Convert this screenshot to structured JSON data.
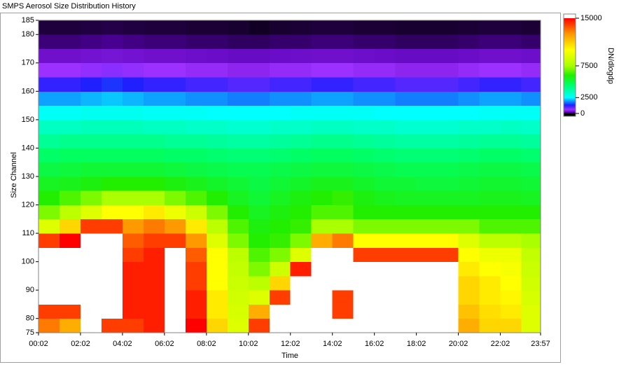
{
  "chart_data": {
    "type": "heatmap",
    "title": "SMPS Aerosol Size Distribution History",
    "x_label": "Time",
    "y_label": "Size Channel",
    "colorbar_label": "DN/dlogdp",
    "xlim": [
      2,
      1437
    ],
    "xticks": [
      {
        "value": 2,
        "label": "00:02"
      },
      {
        "value": 122,
        "label": "02:02"
      },
      {
        "value": 242,
        "label": "04:02"
      },
      {
        "value": 362,
        "label": "06:02"
      },
      {
        "value": 482,
        "label": "08:02"
      },
      {
        "value": 602,
        "label": "10:02"
      },
      {
        "value": 722,
        "label": "12:02"
      },
      {
        "value": 842,
        "label": "14:02"
      },
      {
        "value": 962,
        "label": "16:02"
      },
      {
        "value": 1082,
        "label": "18:02"
      },
      {
        "value": 1202,
        "label": "20:02"
      },
      {
        "value": 1322,
        "label": "22:02"
      },
      {
        "value": 1437,
        "label": "23:57"
      }
    ],
    "ylim": [
      75,
      185
    ],
    "yticks": [
      75,
      80,
      90,
      100,
      110,
      120,
      130,
      140,
      150,
      160,
      170,
      180,
      185
    ],
    "zlim": [
      0,
      15000
    ],
    "zticks": [
      0,
      2500,
      7500,
      15000
    ],
    "colorscale": [
      [
        0,
        "#000000"
      ],
      [
        150,
        "#5a00b4"
      ],
      [
        600,
        "#9b30ff"
      ],
      [
        1300,
        "#2020ff"
      ],
      [
        2500,
        "#00ffff"
      ],
      [
        4500,
        "#00ff66"
      ],
      [
        6000,
        "#22ee00"
      ],
      [
        7500,
        "#aaff00"
      ],
      [
        10000,
        "#ffff00"
      ],
      [
        12500,
        "#ff9900"
      ],
      [
        15000,
        "#ff0000"
      ]
    ],
    "over_color": "#ffffff",
    "xbins": [
      2,
      62,
      122,
      182,
      242,
      302,
      362,
      422,
      482,
      542,
      602,
      662,
      722,
      782,
      842,
      902,
      962,
      1022,
      1082,
      1142,
      1202,
      1262,
      1322,
      1382,
      1437
    ],
    "ybins": [
      75,
      80,
      85,
      90,
      95,
      100,
      105,
      110,
      115,
      120,
      125,
      130,
      135,
      140,
      145,
      150,
      155,
      160,
      165,
      170,
      175,
      180,
      185
    ],
    "z": [
      [
        13000,
        12000,
        20000,
        14000,
        14000,
        14500,
        20000,
        15000,
        11000,
        9000,
        14000,
        20000,
        20000,
        20000,
        20000,
        20000,
        20000,
        20000,
        20000,
        20000,
        12000,
        11000,
        11000,
        9000
      ],
      [
        14000,
        14000,
        20000,
        20000,
        14500,
        14500,
        20000,
        14500,
        10500,
        8800,
        12000,
        20000,
        20000,
        20000,
        14000,
        20000,
        20000,
        20000,
        20000,
        20000,
        11500,
        10800,
        10500,
        9000
      ],
      [
        20000,
        20000,
        20000,
        20000,
        14500,
        14500,
        20000,
        14500,
        10500,
        8600,
        9000,
        14000,
        20000,
        20000,
        14000,
        20000,
        20000,
        20000,
        20000,
        20000,
        11000,
        10500,
        10200,
        8800
      ],
      [
        20000,
        20000,
        20000,
        20000,
        14500,
        14500,
        20000,
        14000,
        10000,
        8400,
        8000,
        11000,
        20000,
        20000,
        20000,
        20000,
        20000,
        20000,
        20000,
        20000,
        11000,
        10500,
        10000,
        8600
      ],
      [
        20000,
        20000,
        20000,
        20000,
        14500,
        14500,
        20000,
        14000,
        10000,
        8200,
        7000,
        8500,
        14500,
        20000,
        20000,
        20000,
        20000,
        20000,
        20000,
        20000,
        10500,
        10000,
        9800,
        8400
      ],
      [
        20000,
        20000,
        20000,
        20000,
        14000,
        14500,
        20000,
        13500,
        10000,
        8000,
        6500,
        7000,
        9000,
        20000,
        20000,
        14000,
        14000,
        14000,
        14000,
        14000,
        10000,
        9500,
        9500,
        8200
      ],
      [
        14000,
        15000,
        20000,
        20000,
        13500,
        14000,
        14000,
        12500,
        9000,
        7000,
        6000,
        6200,
        7000,
        12000,
        13000,
        10000,
        10000,
        10000,
        10000,
        10000,
        9000,
        8000,
        8000,
        7500
      ],
      [
        9000,
        11000,
        14000,
        14000,
        12500,
        13000,
        12500,
        10500,
        8000,
        6500,
        5800,
        6000,
        6200,
        7500,
        7500,
        7000,
        7000,
        7000,
        7000,
        7000,
        7000,
        6500,
        6500,
        6500
      ],
      [
        7000,
        8000,
        9000,
        10000,
        10000,
        10500,
        9500,
        8500,
        7000,
        6000,
        5500,
        5800,
        6000,
        6500,
        6500,
        6000,
        6000,
        6000,
        6000,
        6000,
        6000,
        6000,
        6000,
        6000
      ],
      [
        6000,
        6500,
        7000,
        7500,
        7500,
        7500,
        7000,
        6500,
        6000,
        5500,
        5200,
        5500,
        5800,
        6000,
        6200,
        5800,
        5600,
        5500,
        5500,
        5500,
        5500,
        5600,
        5600,
        5500
      ],
      [
        5500,
        5600,
        5800,
        6000,
        6000,
        6000,
        5800,
        5600,
        5400,
        5200,
        5000,
        5200,
        5400,
        5600,
        5600,
        5400,
        5200,
        5200,
        5100,
        5100,
        5200,
        5300,
        5300,
        5200
      ],
      [
        5000,
        5100,
        5200,
        5200,
        5200,
        5200,
        5100,
        5000,
        4900,
        4800,
        4800,
        4900,
        5000,
        5100,
        5100,
        5000,
        4900,
        4800,
        4800,
        4800,
        4900,
        5000,
        5000,
        4900
      ],
      [
        4500,
        4600,
        4600,
        4600,
        4600,
        4600,
        4500,
        4500,
        4400,
        4300,
        4300,
        4400,
        4500,
        4600,
        4600,
        4500,
        4400,
        4300,
        4300,
        4300,
        4400,
        4500,
        4500,
        4400
      ],
      [
        3900,
        4000,
        4000,
        4000,
        4000,
        4000,
        3900,
        3900,
        3800,
        3700,
        3700,
        3800,
        3900,
        4000,
        4000,
        3900,
        3800,
        3700,
        3700,
        3700,
        3800,
        3900,
        3900,
        3800
      ],
      [
        3300,
        3300,
        3400,
        3400,
        3400,
        3300,
        3300,
        3200,
        3200,
        3100,
        3100,
        3200,
        3200,
        3300,
        3300,
        3200,
        3200,
        3100,
        3100,
        3100,
        3200,
        3200,
        3300,
        3200
      ],
      [
        2600,
        2600,
        2700,
        2700,
        2700,
        2600,
        2600,
        2600,
        2500,
        2500,
        2500,
        2500,
        2600,
        2600,
        2600,
        2600,
        2500,
        2500,
        2500,
        2500,
        2500,
        2600,
        2600,
        2600
      ],
      [
        2000,
        2000,
        2100,
        2200,
        2100,
        2000,
        2000,
        1900,
        1900,
        1800,
        1800,
        1900,
        1900,
        2000,
        2000,
        1900,
        1900,
        1800,
        1800,
        1800,
        1900,
        2000,
        2000,
        1900
      ],
      [
        1200,
        1200,
        1300,
        1400,
        1300,
        1200,
        1200,
        1100,
        1100,
        1000,
        1000,
        1100,
        1100,
        1200,
        1200,
        1100,
        1100,
        1000,
        1000,
        1000,
        1100,
        1200,
        1200,
        1100
      ],
      [
        600,
        600,
        650,
        700,
        650,
        600,
        600,
        550,
        550,
        500,
        500,
        550,
        550,
        600,
        600,
        550,
        550,
        500,
        500,
        500,
        550,
        600,
        600,
        550
      ],
      [
        300,
        300,
        320,
        350,
        320,
        300,
        300,
        280,
        270,
        250,
        250,
        270,
        280,
        300,
        300,
        280,
        270,
        250,
        250,
        250,
        270,
        300,
        300,
        280
      ],
      [
        100,
        100,
        110,
        120,
        110,
        100,
        100,
        90,
        90,
        80,
        80,
        90,
        90,
        100,
        100,
        90,
        90,
        80,
        80,
        80,
        90,
        100,
        100,
        90
      ],
      [
        50,
        50,
        55,
        60,
        55,
        50,
        50,
        45,
        45,
        40,
        30,
        40,
        45,
        50,
        50,
        45,
        45,
        40,
        40,
        40,
        45,
        50,
        50,
        45
      ]
    ]
  }
}
